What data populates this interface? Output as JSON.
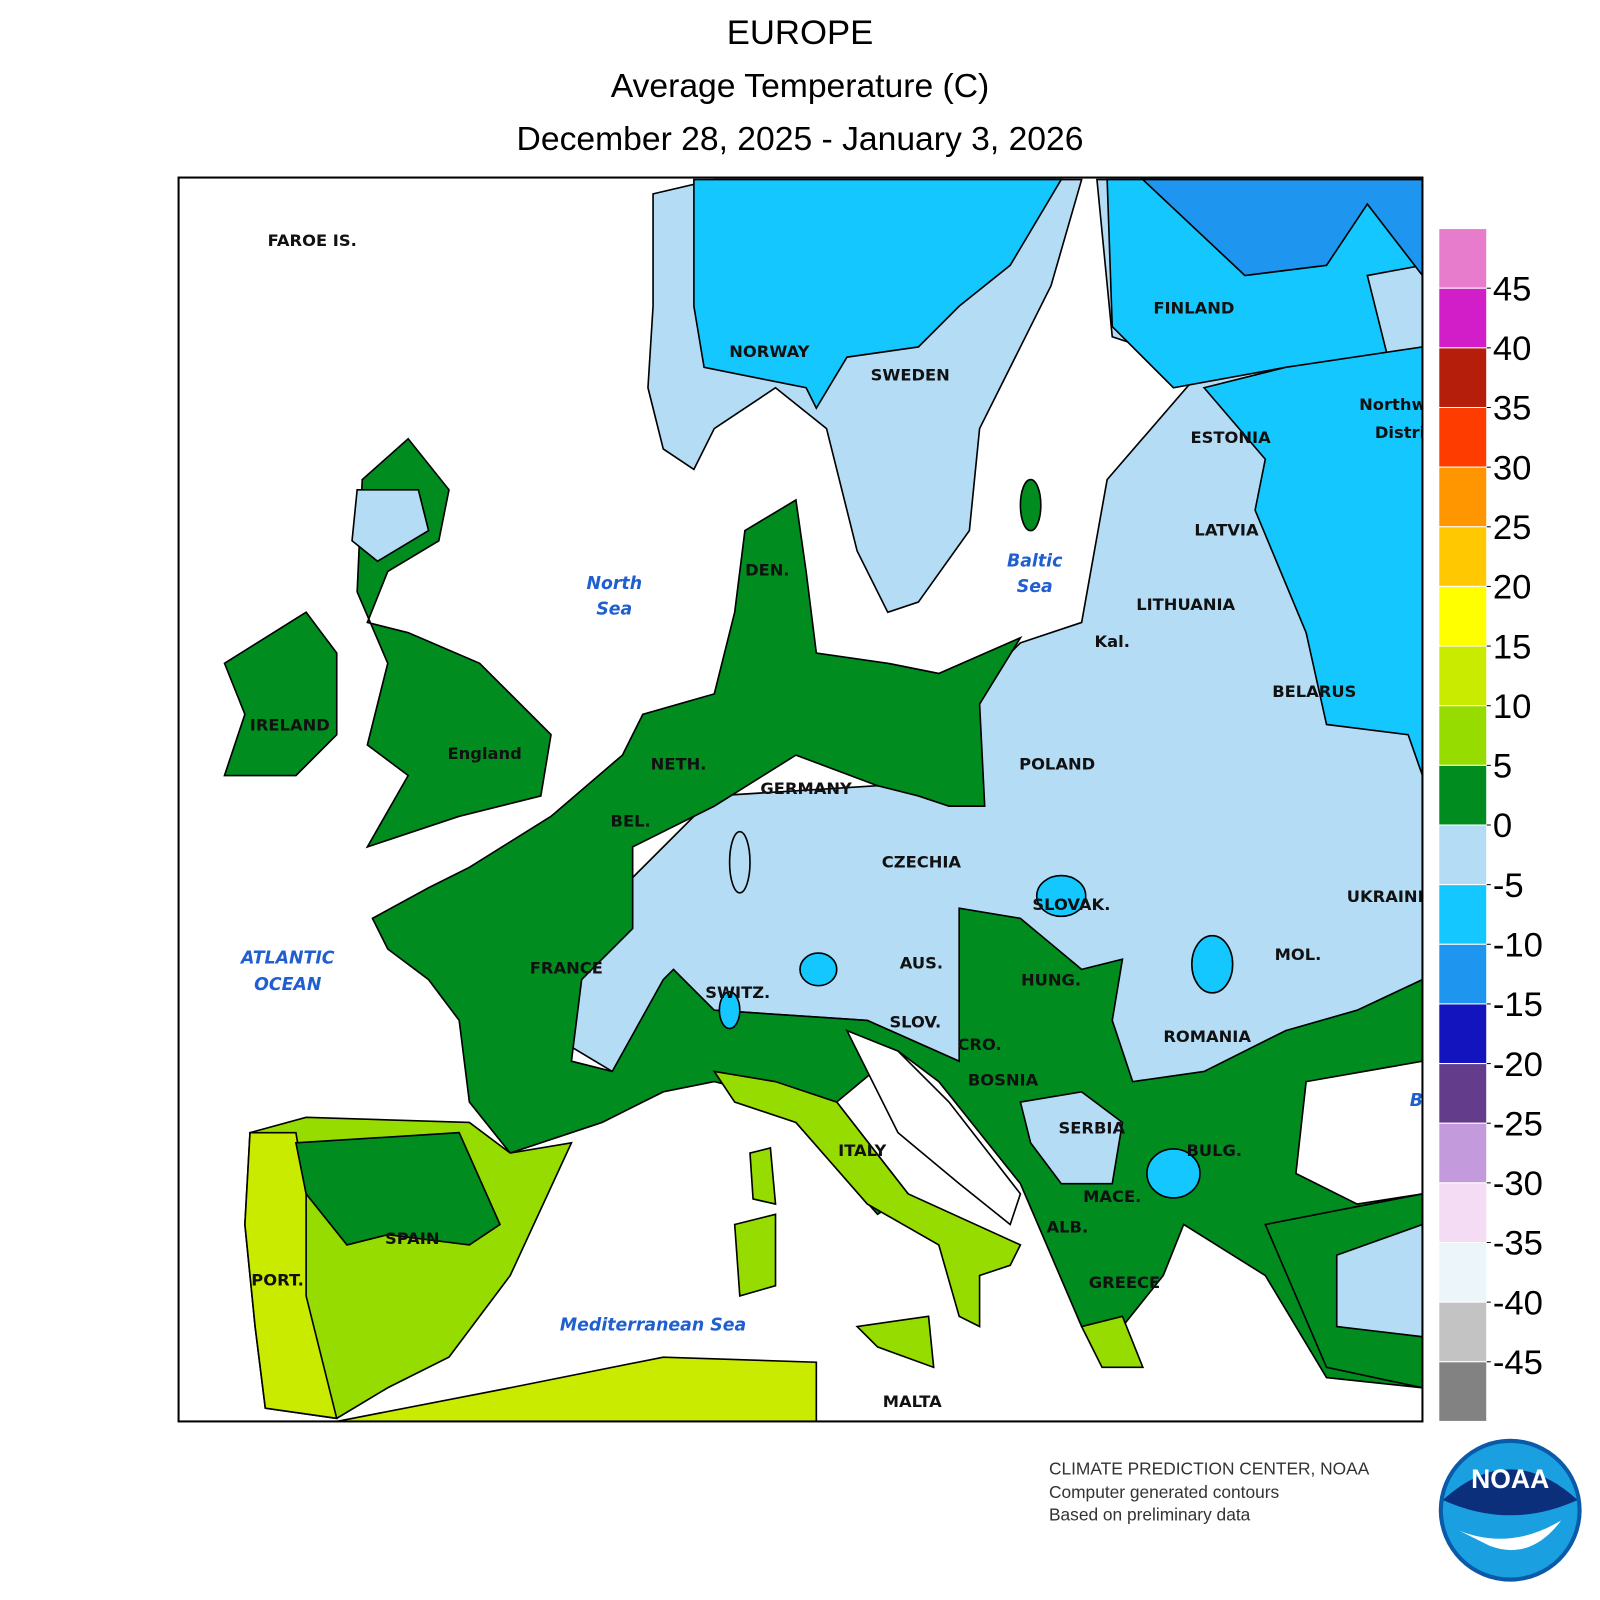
{
  "header": {
    "title": "EUROPE",
    "subtitle": "Average Temperature (C)",
    "period": "December 28, 2025 - January 3, 2026"
  },
  "legend": {
    "colors": [
      "#e87ccc",
      "#d21ec8",
      "#b41e0a",
      "#ff3c00",
      "#ff9600",
      "#ffc800",
      "#ffff00",
      "#c8eb00",
      "#96dc00",
      "#008c1e",
      "#b4dcf5",
      "#14c8ff",
      "#1e96f0",
      "#1414be",
      "#643c8c",
      "#c39bdc",
      "#f5dcf5",
      "#ebf5fa",
      "#c3c3c3",
      "#828282"
    ],
    "ticks": [
      45,
      40,
      35,
      30,
      25,
      20,
      15,
      10,
      5,
      0,
      -5,
      -10,
      -15,
      -20,
      -25,
      -30,
      -35,
      -40,
      -45
    ]
  },
  "labels": [
    "FAROE IS.",
    "NORWAY",
    "SWEDEN",
    "FINLAND",
    "ESTONIA",
    "LATVIA",
    "LITHUANIA",
    "Kal.",
    "BELARUS",
    "Northw",
    "Distri",
    "IRELAND",
    "England",
    "NETH.",
    "DEN.",
    "GERMANY",
    "BEL.",
    "POLAND",
    "CZECHIA",
    "SLOVAK.",
    "UKRAINE",
    "FRANCE",
    "SWITZ.",
    "AUS.",
    "HUNG.",
    "MOL.",
    "ROMANIA",
    "SLOV.",
    "CRO.",
    "BOSNIA",
    "SERBIA",
    "BULG.",
    "MACE.",
    "ALB.",
    "ITALY",
    "GREECE",
    "SPAIN",
    "PORT.",
    "MALTA"
  ],
  "seas": [
    [
      "North",
      "Sea"
    ],
    [
      "Baltic",
      "Sea"
    ],
    [
      "ATLANTIC",
      "OCEAN"
    ],
    [
      "Mediterranean Sea"
    ],
    [
      "B"
    ]
  ],
  "credits": [
    "CLIMATE PREDICTION CENTER, NOAA",
    "Computer generated contours",
    "Based on preliminary data"
  ],
  "logo": "NOAA"
}
